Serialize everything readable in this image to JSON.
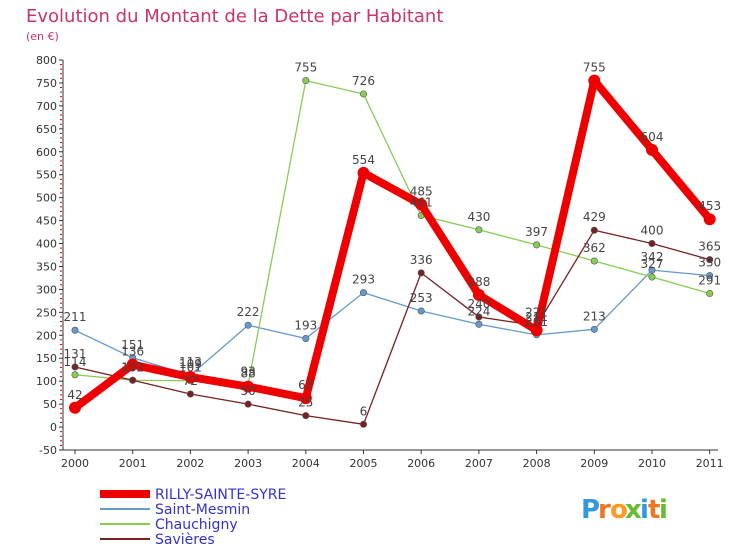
{
  "chart_data": {
    "type": "line",
    "title": "Evolution du Montant de la Dette par Habitant",
    "subtitle": "(en €)",
    "categories": [
      "2000",
      "2001",
      "2002",
      "2003",
      "2004",
      "2005",
      "2006",
      "2007",
      "2008",
      "2009",
      "2010",
      "2011"
    ],
    "yticks": [
      -50,
      0,
      50,
      100,
      150,
      200,
      250,
      300,
      350,
      400,
      450,
      500,
      550,
      600,
      650,
      700,
      750,
      800
    ],
    "ylim": [
      -50,
      800
    ],
    "grid": false,
    "legend_position": "bottom-left",
    "series": [
      {
        "name": "RILLY-SAINTE-SYRE",
        "color": "#ee0000",
        "width": 8,
        "marker": 6,
        "values": [
          42,
          136,
          109,
          88,
          63,
          554,
          485,
          288,
          211,
          755,
          604,
          453
        ],
        "labels": [
          "42",
          "136",
          "109",
          "88",
          "63",
          "554",
          "485",
          "288",
          "211",
          "755",
          "604",
          "453"
        ]
      },
      {
        "name": "Saint-Mesmin",
        "color": "#6699cc",
        "width": 1.3,
        "marker": 3.2,
        "values": [
          211,
          151,
          113,
          222,
          193,
          293,
          253,
          224,
          201,
          213,
          342,
          330
        ],
        "labels": [
          "211",
          "151",
          "113",
          "222",
          "193",
          "293",
          "253",
          "224",
          "201",
          "213",
          "342",
          "330"
        ]
      },
      {
        "name": "Chauchigny",
        "color": "#88cc55",
        "width": 1.3,
        "marker": 3.2,
        "values": [
          114,
          102,
          101,
          93,
          755,
          726,
          461,
          430,
          397,
          362,
          327,
          291
        ],
        "labels": [
          "114",
          "102",
          "101",
          "93",
          "755",
          "726",
          "461",
          "430",
          "397",
          "362",
          "327",
          "291"
        ]
      },
      {
        "name": "Savières",
        "color": "#772222",
        "width": 1.3,
        "marker": 3.2,
        "values": [
          131,
          102,
          72,
          50,
          25,
          6,
          336,
          240,
          221,
          429,
          400,
          365
        ],
        "labels": [
          "131",
          "102",
          "72",
          "50",
          "25",
          "6",
          "336",
          "240",
          "221",
          "429",
          "400",
          "365"
        ]
      }
    ]
  },
  "colors": {
    "title": "#cc3366",
    "axis_labels": "#333333",
    "axis_line": "#333333",
    "tick_red": "#cc0000",
    "legend_text": "#3333cc",
    "data_label": "#444444"
  },
  "brand": {
    "logo_text": "Proxiti"
  }
}
